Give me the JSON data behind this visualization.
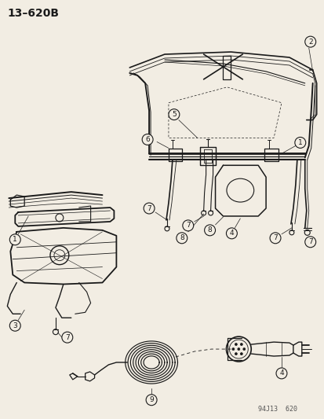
{
  "title": "13–620B",
  "watermark": "94J13  620",
  "bg_color": "#f2ede3",
  "line_color": "#1a1a1a",
  "label_color": "#1a1a1a"
}
